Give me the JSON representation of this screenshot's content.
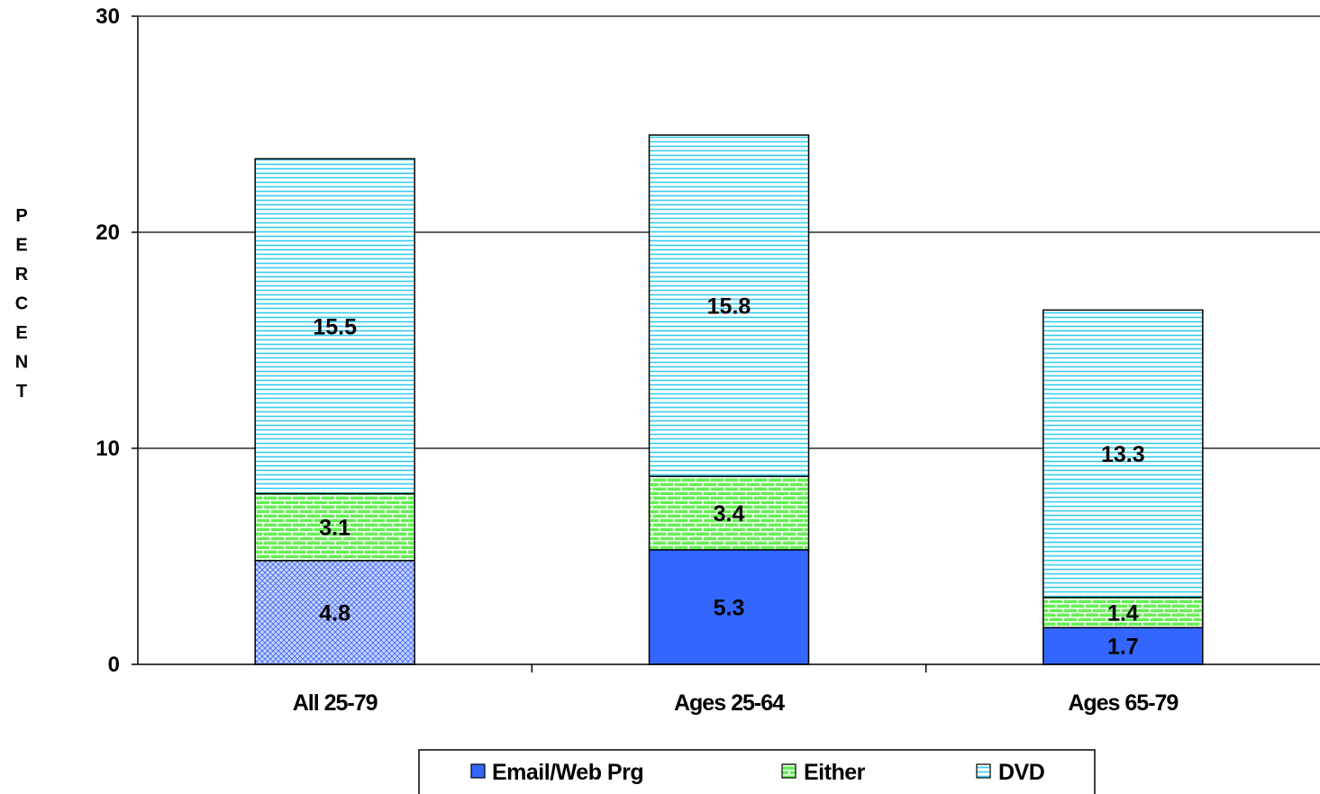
{
  "chart_data": {
    "type": "bar",
    "stacked": true,
    "title": "",
    "xlabel": "",
    "ylabel": "PERCENT",
    "ylim": [
      0,
      30
    ],
    "yticks": [
      "0",
      "10",
      "20",
      "30"
    ],
    "grid": true,
    "legend_position": "bottom",
    "categories": [
      "All 25-79",
      "Ages 25-64",
      "Ages 65-79"
    ],
    "series": [
      {
        "name": "Email/Web Prg",
        "values": [
          4.8,
          5.3,
          1.7
        ],
        "labels": [
          "4.8",
          "5.3",
          "1.7"
        ],
        "color": "#3366ff"
      },
      {
        "name": "Either",
        "values": [
          3.1,
          3.4,
          1.4
        ],
        "labels": [
          "3.1",
          "3.4",
          "1.4"
        ],
        "color": "#33cc33"
      },
      {
        "name": "DVD",
        "values": [
          15.5,
          15.8,
          13.3
        ],
        "labels": [
          "15.5",
          "15.8",
          "13.3"
        ],
        "color": "#33ccff"
      }
    ]
  }
}
